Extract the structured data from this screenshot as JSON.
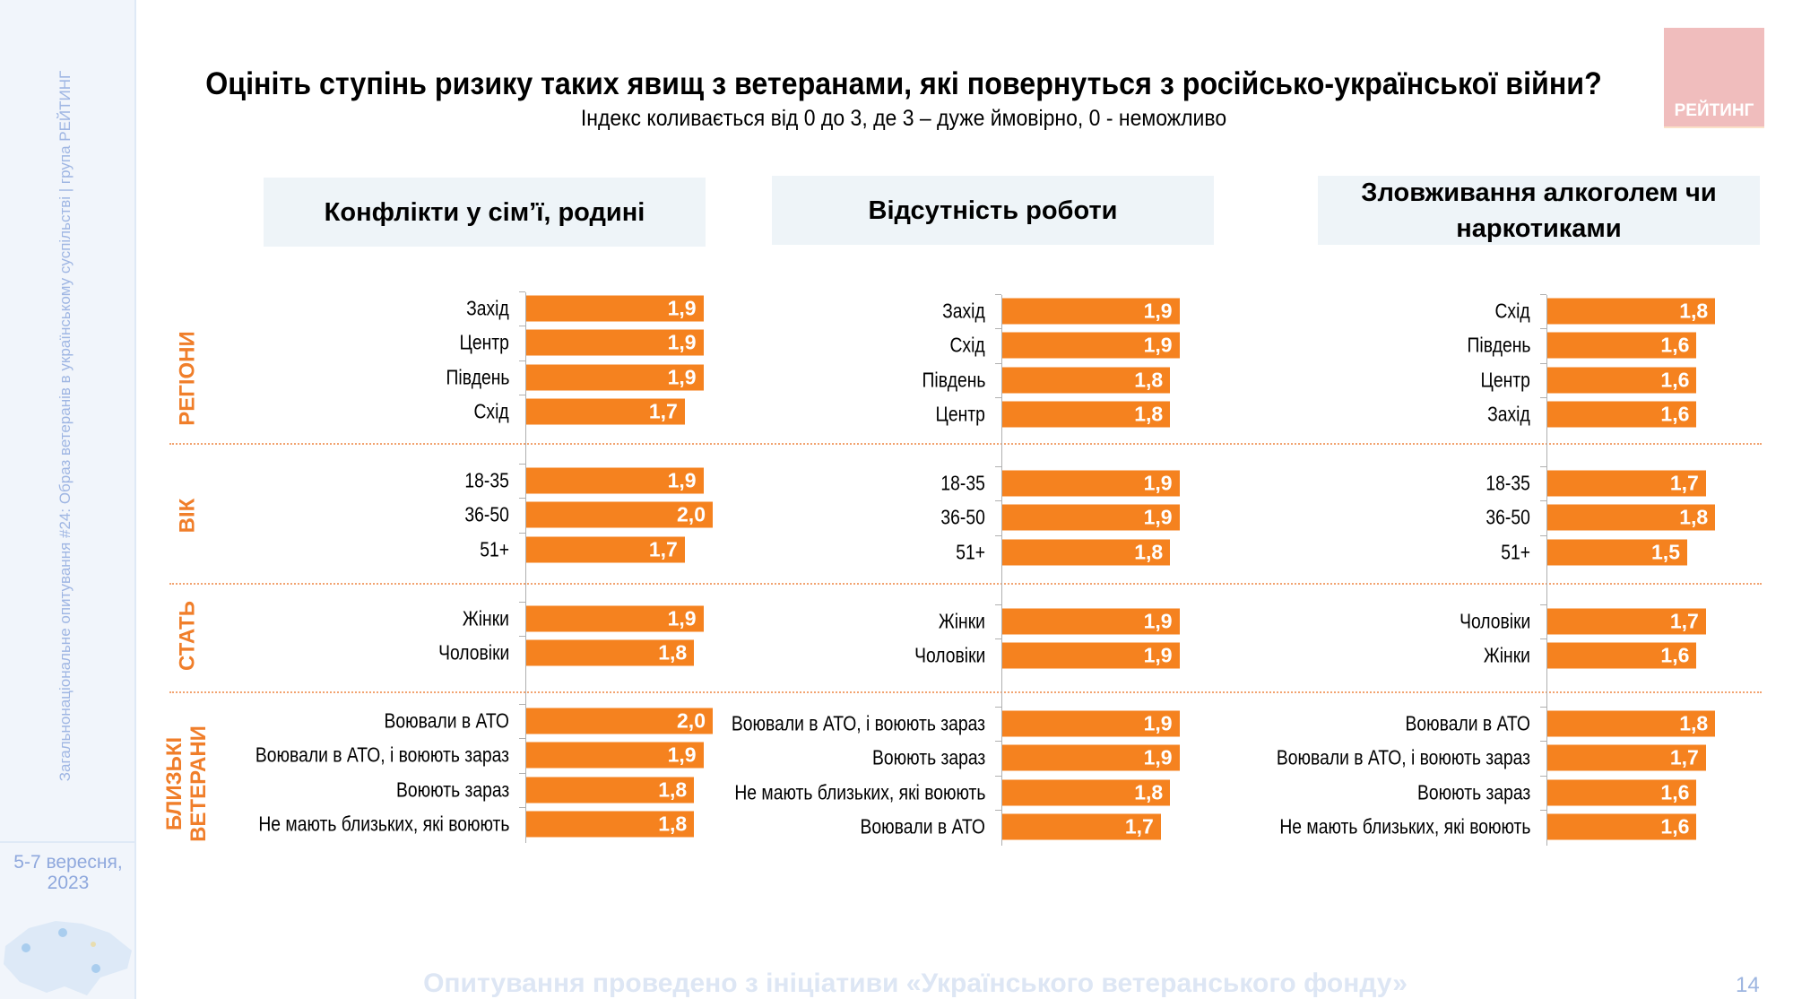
{
  "sidebar": {
    "vertical_text": "Загальнонаціональне опитування #24: Образ ветеранів в українському суспільстві | група РЕЙТИНГ",
    "date": "5-7 вересня, 2023"
  },
  "logo": {
    "text": "РЕЙТИНГ"
  },
  "title": "Оцініть ступінь ризику таких явищ з ветеранами, які повернуться з російсько-української війни?",
  "subtitle": "Індекс коливається від 0 до 3, де 3 – дуже ймовірно, 0 - неможливо",
  "footer": "Опитування проведено з ініціативи «Українського ветеранського фонду»",
  "page_number": "14",
  "group_labels": [
    "РЕГІОНИ",
    "ВІК",
    "СТАТЬ",
    "БЛИЗЬКІ ВЕТЕРАНИ"
  ],
  "colors": {
    "bar": "#f5821f",
    "group_label": "#f07e2a"
  },
  "chart_data": [
    {
      "type": "bar",
      "orientation": "horizontal",
      "title": "Конфлікти у сім’ї, родині",
      "xlim": [
        0,
        3
      ],
      "groups": [
        {
          "categories": [
            "Захід",
            "Центр",
            "Південь",
            "Схід"
          ],
          "values": [
            "1,9",
            "1,9",
            "1,9",
            "1,7"
          ]
        },
        {
          "categories": [
            "18-35",
            "36-50",
            "51+"
          ],
          "values": [
            "1,9",
            "2,0",
            "1,7"
          ]
        },
        {
          "categories": [
            "Жінки",
            "Чоловіки"
          ],
          "values": [
            "1,9",
            "1,8"
          ]
        },
        {
          "categories": [
            "Воювали в АТО",
            "Воювали в АТО, і воюють зараз",
            "Воюють зараз",
            "Не мають близьких, які воюють"
          ],
          "values": [
            "2,0",
            "1,9",
            "1,8",
            "1,8"
          ]
        }
      ]
    },
    {
      "type": "bar",
      "orientation": "horizontal",
      "title": "Відсутність роботи",
      "xlim": [
        0,
        3
      ],
      "groups": [
        {
          "categories": [
            "Захід",
            "Схід",
            "Південь",
            "Центр"
          ],
          "values": [
            "1,9",
            "1,9",
            "1,8",
            "1,8"
          ]
        },
        {
          "categories": [
            "18-35",
            "36-50",
            "51+"
          ],
          "values": [
            "1,9",
            "1,9",
            "1,8"
          ]
        },
        {
          "categories": [
            "Жінки",
            "Чоловіки"
          ],
          "values": [
            "1,9",
            "1,9"
          ]
        },
        {
          "categories": [
            "Воювали в АТО, і воюють зараз",
            "Воюють зараз",
            "Не мають близьких, які воюють",
            "Воювали в АТО"
          ],
          "values": [
            "1,9",
            "1,9",
            "1,8",
            "1,7"
          ]
        }
      ]
    },
    {
      "type": "bar",
      "orientation": "horizontal",
      "title": "Зловживання алкоголем чи наркотиками",
      "xlim": [
        0,
        3
      ],
      "groups": [
        {
          "categories": [
            "Схід",
            "Південь",
            "Центр",
            "Захід"
          ],
          "values": [
            "1,8",
            "1,6",
            "1,6",
            "1,6"
          ]
        },
        {
          "categories": [
            "18-35",
            "36-50",
            "51+"
          ],
          "values": [
            "1,7",
            "1,8",
            "1,5"
          ]
        },
        {
          "categories": [
            "Чоловіки",
            "Жінки"
          ],
          "values": [
            "1,7",
            "1,6"
          ]
        },
        {
          "categories": [
            "Воювали в АТО",
            "Воювали в АТО, і воюють зараз",
            "Воюють зараз",
            "Не мають близьких, які воюють"
          ],
          "values": [
            "1,8",
            "1,7",
            "1,6",
            "1,6"
          ]
        }
      ]
    }
  ]
}
